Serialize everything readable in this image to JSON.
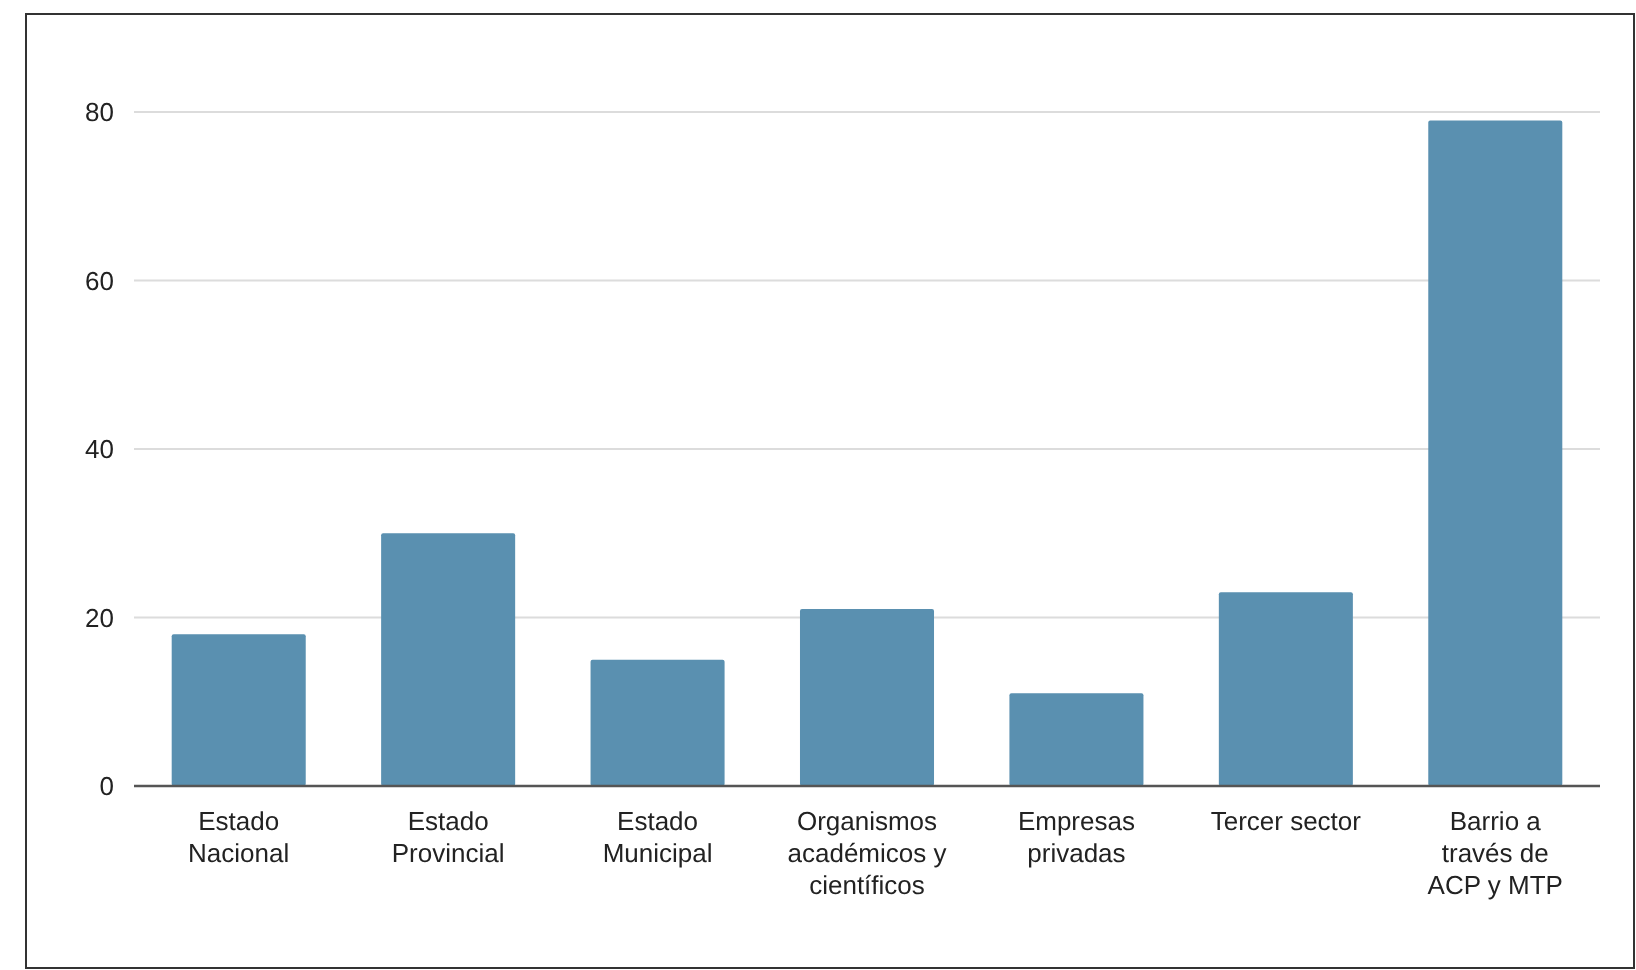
{
  "chart_data": {
    "type": "bar",
    "categories": [
      "Estado Nacional",
      "Estado Provincial",
      "Estado Municipal",
      "Organismos académicos y científicos",
      "Empresas privadas",
      "Tercer sector",
      "Barrio a través de ACP y MTP"
    ],
    "values": [
      18,
      30,
      15,
      21,
      11,
      23,
      79
    ],
    "color": "#5a90b0",
    "ylim": [
      0,
      80
    ],
    "yticks": [
      0,
      20,
      40,
      60,
      80
    ],
    "grid": "y"
  }
}
